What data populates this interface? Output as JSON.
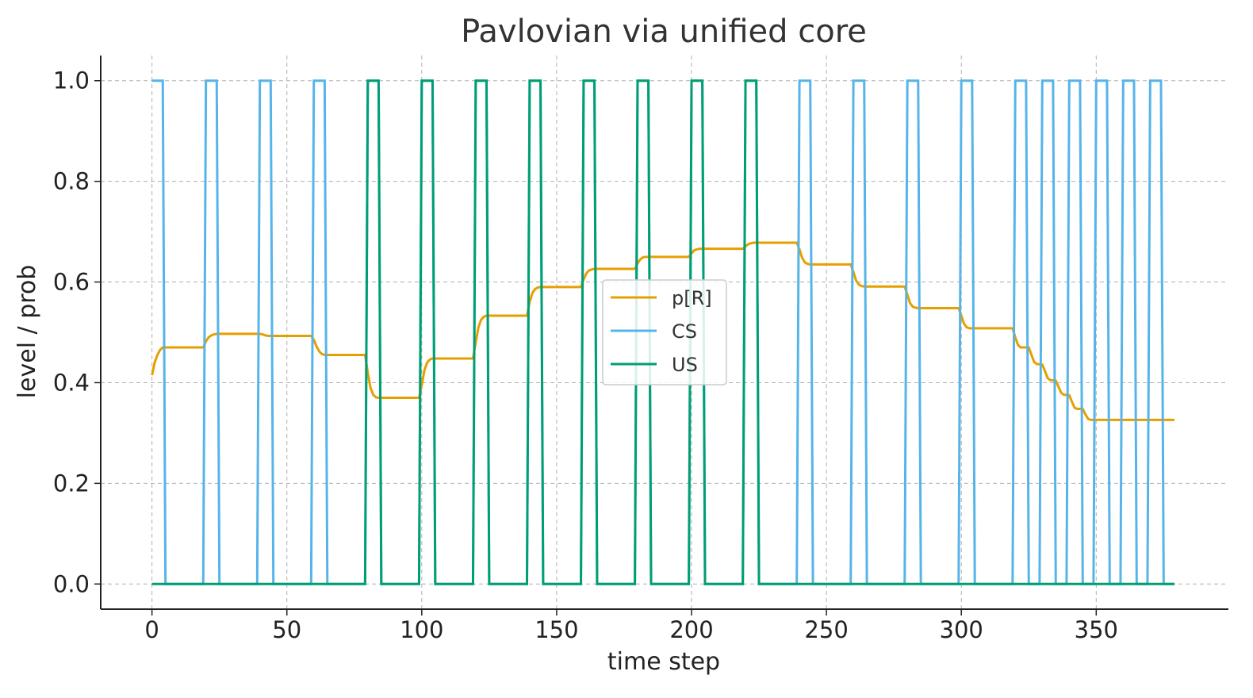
{
  "chart_data": {
    "type": "line",
    "title": "Pavlovian via unified core",
    "xlabel": "time step",
    "ylabel": "level / prob",
    "xlim": [
      -19,
      399
    ],
    "ylim": [
      -0.05,
      1.05
    ],
    "xticks": [
      0,
      50,
      100,
      150,
      200,
      250,
      300,
      350
    ],
    "yticks": [
      0.0,
      0.2,
      0.4,
      0.6,
      0.8,
      1.0
    ],
    "xtick_labels": [
      "0",
      "50",
      "100",
      "150",
      "200",
      "250",
      "300",
      "350"
    ],
    "ytick_labels": [
      "0.0",
      "0.2",
      "0.4",
      "0.6",
      "0.8",
      "1.0"
    ],
    "grid": true,
    "legend_position": "center",
    "trial_period": 20,
    "pulse_width": 5,
    "series": [
      {
        "name": "p[R]",
        "color": "#E69F00",
        "points": [
          [
            0,
            0.415
          ],
          [
            1,
            0.44
          ],
          [
            2,
            0.455
          ],
          [
            3,
            0.465
          ],
          [
            4,
            0.47
          ],
          [
            19,
            0.47
          ],
          [
            20,
            0.482
          ],
          [
            21,
            0.49
          ],
          [
            22,
            0.494
          ],
          [
            23,
            0.496
          ],
          [
            24,
            0.497
          ],
          [
            39,
            0.497
          ],
          [
            40,
            0.497
          ],
          [
            41,
            0.496
          ],
          [
            42,
            0.494
          ],
          [
            43,
            0.493
          ],
          [
            44,
            0.493
          ],
          [
            59,
            0.493
          ],
          [
            60,
            0.485
          ],
          [
            61,
            0.472
          ],
          [
            62,
            0.462
          ],
          [
            63,
            0.457
          ],
          [
            64,
            0.455
          ],
          [
            79,
            0.455
          ],
          [
            80,
            0.42
          ],
          [
            81,
            0.39
          ],
          [
            82,
            0.376
          ],
          [
            83,
            0.371
          ],
          [
            84,
            0.37
          ],
          [
            99,
            0.37
          ],
          [
            100,
            0.395
          ],
          [
            101,
            0.425
          ],
          [
            102,
            0.44
          ],
          [
            103,
            0.446
          ],
          [
            104,
            0.448
          ],
          [
            119,
            0.448
          ],
          [
            120,
            0.48
          ],
          [
            121,
            0.51
          ],
          [
            122,
            0.525
          ],
          [
            123,
            0.531
          ],
          [
            124,
            0.533
          ],
          [
            139,
            0.533
          ],
          [
            140,
            0.56
          ],
          [
            141,
            0.578
          ],
          [
            142,
            0.586
          ],
          [
            143,
            0.589
          ],
          [
            144,
            0.59
          ],
          [
            159,
            0.59
          ],
          [
            160,
            0.605
          ],
          [
            161,
            0.617
          ],
          [
            162,
            0.623
          ],
          [
            163,
            0.625
          ],
          [
            164,
            0.626
          ],
          [
            179,
            0.626
          ],
          [
            180,
            0.637
          ],
          [
            181,
            0.645
          ],
          [
            182,
            0.649
          ],
          [
            183,
            0.65
          ],
          [
            184,
            0.65
          ],
          [
            199,
            0.65
          ],
          [
            200,
            0.657
          ],
          [
            201,
            0.663
          ],
          [
            202,
            0.665
          ],
          [
            203,
            0.666
          ],
          [
            204,
            0.666
          ],
          [
            219,
            0.666
          ],
          [
            220,
            0.671
          ],
          [
            221,
            0.675
          ],
          [
            222,
            0.677
          ],
          [
            223,
            0.678
          ],
          [
            224,
            0.678
          ],
          [
            239,
            0.678
          ],
          [
            240,
            0.665
          ],
          [
            241,
            0.648
          ],
          [
            242,
            0.639
          ],
          [
            243,
            0.636
          ],
          [
            244,
            0.635
          ],
          [
            259,
            0.635
          ],
          [
            260,
            0.62
          ],
          [
            261,
            0.603
          ],
          [
            262,
            0.595
          ],
          [
            263,
            0.592
          ],
          [
            264,
            0.591
          ],
          [
            279,
            0.591
          ],
          [
            280,
            0.575
          ],
          [
            281,
            0.558
          ],
          [
            282,
            0.551
          ],
          [
            283,
            0.549
          ],
          [
            284,
            0.548
          ],
          [
            299,
            0.548
          ],
          [
            300,
            0.533
          ],
          [
            301,
            0.517
          ],
          [
            302,
            0.51
          ],
          [
            303,
            0.508
          ],
          [
            304,
            0.508
          ],
          [
            319,
            0.508
          ],
          [
            320,
            0.49
          ],
          [
            321,
            0.475
          ],
          [
            322,
            0.47
          ],
          [
            325,
            0.47
          ],
          [
            326,
            0.455
          ],
          [
            327,
            0.441
          ],
          [
            328,
            0.437
          ],
          [
            330,
            0.436
          ],
          [
            331,
            0.423
          ],
          [
            332,
            0.409
          ],
          [
            333,
            0.405
          ],
          [
            335,
            0.404
          ],
          [
            336,
            0.392
          ],
          [
            337,
            0.38
          ],
          [
            338,
            0.376
          ],
          [
            340,
            0.375
          ],
          [
            341,
            0.362
          ],
          [
            342,
            0.35
          ],
          [
            343,
            0.348
          ],
          [
            345,
            0.348
          ],
          [
            346,
            0.337
          ],
          [
            347,
            0.328
          ],
          [
            348,
            0.326
          ],
          [
            379,
            0.326
          ]
        ]
      },
      {
        "name": "CS",
        "color": "#56B4E9",
        "points": [
          [
            0,
            1
          ],
          [
            4,
            1
          ],
          [
            5,
            0
          ],
          [
            19,
            0
          ],
          [
            20,
            1
          ],
          [
            24,
            1
          ],
          [
            25,
            0
          ],
          [
            39,
            0
          ],
          [
            40,
            1
          ],
          [
            44,
            1
          ],
          [
            45,
            0
          ],
          [
            59,
            0
          ],
          [
            60,
            1
          ],
          [
            64,
            1
          ],
          [
            65,
            0
          ],
          [
            79,
            0
          ],
          [
            80,
            1
          ],
          [
            84,
            1
          ],
          [
            85,
            0
          ],
          [
            99,
            0
          ],
          [
            100,
            1
          ],
          [
            104,
            1
          ],
          [
            105,
            0
          ],
          [
            119,
            0
          ],
          [
            120,
            1
          ],
          [
            124,
            1
          ],
          [
            125,
            0
          ],
          [
            139,
            0
          ],
          [
            140,
            1
          ],
          [
            144,
            1
          ],
          [
            145,
            0
          ],
          [
            159,
            0
          ],
          [
            160,
            1
          ],
          [
            164,
            1
          ],
          [
            165,
            0
          ],
          [
            179,
            0
          ],
          [
            180,
            1
          ],
          [
            184,
            1
          ],
          [
            185,
            0
          ],
          [
            199,
            0
          ],
          [
            200,
            1
          ],
          [
            204,
            1
          ],
          [
            205,
            0
          ],
          [
            219,
            0
          ],
          [
            220,
            1
          ],
          [
            224,
            1
          ],
          [
            225,
            0
          ],
          [
            239,
            0
          ],
          [
            240,
            1
          ],
          [
            244,
            1
          ],
          [
            245,
            0
          ],
          [
            259,
            0
          ],
          [
            260,
            1
          ],
          [
            264,
            1
          ],
          [
            265,
            0
          ],
          [
            279,
            0
          ],
          [
            280,
            1
          ],
          [
            284,
            1
          ],
          [
            285,
            0
          ],
          [
            299,
            0
          ],
          [
            300,
            1
          ],
          [
            304,
            1
          ],
          [
            305,
            0
          ],
          [
            319,
            0
          ],
          [
            320,
            1
          ],
          [
            324,
            1
          ],
          [
            325,
            0
          ],
          [
            329,
            0
          ],
          [
            330,
            1
          ],
          [
            334,
            1
          ],
          [
            335,
            0
          ],
          [
            339,
            0
          ],
          [
            340,
            1
          ],
          [
            344,
            1
          ],
          [
            345,
            0
          ],
          [
            349,
            0
          ],
          [
            350,
            1
          ],
          [
            354,
            1
          ],
          [
            355,
            0
          ],
          [
            359,
            0
          ],
          [
            360,
            1
          ],
          [
            364,
            1
          ],
          [
            365,
            0
          ],
          [
            369,
            0
          ],
          [
            370,
            1
          ],
          [
            374,
            1
          ],
          [
            375,
            0
          ],
          [
            379,
            0
          ]
        ]
      },
      {
        "name": "US",
        "color": "#009E73",
        "points": [
          [
            0,
            0
          ],
          [
            79,
            0
          ],
          [
            80,
            1
          ],
          [
            84,
            1
          ],
          [
            85,
            0
          ],
          [
            99,
            0
          ],
          [
            100,
            1
          ],
          [
            104,
            1
          ],
          [
            105,
            0
          ],
          [
            119,
            0
          ],
          [
            120,
            1
          ],
          [
            124,
            1
          ],
          [
            125,
            0
          ],
          [
            139,
            0
          ],
          [
            140,
            1
          ],
          [
            144,
            1
          ],
          [
            145,
            0
          ],
          [
            159,
            0
          ],
          [
            160,
            1
          ],
          [
            164,
            1
          ],
          [
            165,
            0
          ],
          [
            179,
            0
          ],
          [
            180,
            1
          ],
          [
            184,
            1
          ],
          [
            185,
            0
          ],
          [
            199,
            0
          ],
          [
            200,
            1
          ],
          [
            204,
            1
          ],
          [
            205,
            0
          ],
          [
            219,
            0
          ],
          [
            220,
            1
          ],
          [
            224,
            1
          ],
          [
            225,
            0
          ],
          [
            379,
            0
          ]
        ]
      }
    ],
    "legend": [
      "p[R]",
      "CS",
      "US"
    ]
  }
}
